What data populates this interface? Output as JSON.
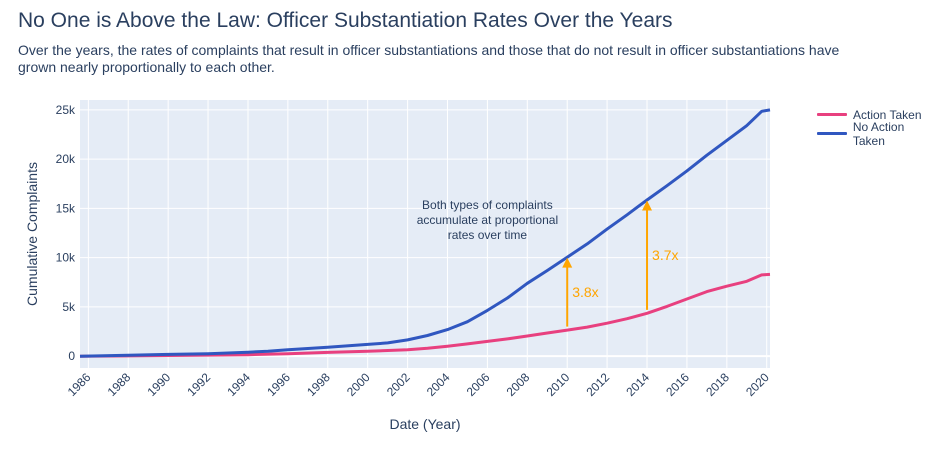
{
  "title": "No One is Above the Law: Officer Substantiation Rates Over the Years",
  "subtitle": "Over the years, the rates of complaints that result in officer substantiations and those that do not result in officer substantiations have grown nearly proportionally to each other.",
  "colors": {
    "plot_bg": "#e5ecf6",
    "grid": "#ffffff",
    "text": "#2a3f5f",
    "annotation": "#ffa500"
  },
  "chart_data": {
    "type": "line",
    "title": "No One is Above the Law: Officer Substantiation Rates Over the Years",
    "xlabel": "Date (Year)",
    "ylabel": "Cumulative Complaints",
    "xlim": [
      "1985-08-01",
      "2020-03-01"
    ],
    "ylim": [
      -1200,
      26000
    ],
    "x_ticks": [
      "1986",
      "1988",
      "1990",
      "1992",
      "1994",
      "1996",
      "1998",
      "2000",
      "2002",
      "2004",
      "2006",
      "2008",
      "2010",
      "2012",
      "2014",
      "2016",
      "2018",
      "2020"
    ],
    "y_ticks": [
      0,
      5000,
      10000,
      15000,
      20000,
      25000
    ],
    "y_tick_labels": [
      "0",
      "5k",
      "10k",
      "15k",
      "20k",
      "25k"
    ],
    "grid": true,
    "legend_position": "right",
    "series": [
      {
        "name": "Action Taken",
        "color": "#e8407f",
        "points": [
          [
            "1985-08-01",
            0
          ],
          [
            "1990-01-01",
            70
          ],
          [
            "1994-01-01",
            150
          ],
          [
            "1996-01-01",
            250
          ],
          [
            "1998-01-01",
            380
          ],
          [
            "2000-01-01",
            500
          ],
          [
            "2002-01-01",
            650
          ],
          [
            "2003-01-01",
            800
          ],
          [
            "2004-01-01",
            1000
          ],
          [
            "2005-01-01",
            1250
          ],
          [
            "2006-01-01",
            1500
          ],
          [
            "2007-01-01",
            1750
          ],
          [
            "2008-01-01",
            2050
          ],
          [
            "2009-01-01",
            2350
          ],
          [
            "2010-01-01",
            2650
          ],
          [
            "2011-01-01",
            2950
          ],
          [
            "2012-01-01",
            3350
          ],
          [
            "2013-01-01",
            3800
          ],
          [
            "2014-01-01",
            4350
          ],
          [
            "2015-01-01",
            5050
          ],
          [
            "2016-01-01",
            5800
          ],
          [
            "2017-01-01",
            6550
          ],
          [
            "2018-01-01",
            7100
          ],
          [
            "2019-01-01",
            7600
          ],
          [
            "2019-10-01",
            8250
          ],
          [
            "2020-03-01",
            8300
          ]
        ]
      },
      {
        "name": "No Action Taken",
        "color": "#3057c0",
        "points": [
          [
            "1985-08-01",
            0
          ],
          [
            "1988-01-01",
            100
          ],
          [
            "1990-01-01",
            180
          ],
          [
            "1992-01-01",
            250
          ],
          [
            "1994-01-01",
            400
          ],
          [
            "1995-01-01",
            500
          ],
          [
            "1996-01-01",
            650
          ],
          [
            "1998-01-01",
            900
          ],
          [
            "2000-01-01",
            1200
          ],
          [
            "2001-01-01",
            1350
          ],
          [
            "2002-01-01",
            1650
          ],
          [
            "2003-01-01",
            2100
          ],
          [
            "2004-01-01",
            2700
          ],
          [
            "2005-01-01",
            3500
          ],
          [
            "2006-01-01",
            4650
          ],
          [
            "2007-01-01",
            5900
          ],
          [
            "2008-01-01",
            7400
          ],
          [
            "2009-01-01",
            8700
          ],
          [
            "2010-01-01",
            10050
          ],
          [
            "2011-01-01",
            11400
          ],
          [
            "2012-01-01",
            12900
          ],
          [
            "2013-01-01",
            14350
          ],
          [
            "2014-01-01",
            15850
          ],
          [
            "2015-01-01",
            17300
          ],
          [
            "2016-01-01",
            18800
          ],
          [
            "2017-01-01",
            20400
          ],
          [
            "2018-01-01",
            21900
          ],
          [
            "2019-01-01",
            23400
          ],
          [
            "2019-10-01",
            24850
          ],
          [
            "2020-03-01",
            25000
          ]
        ]
      }
    ],
    "annotations": [
      {
        "text": "Both types of complaints accumulate at proportional rates over time",
        "lines": [
          "Both types of complaints",
          "accumulate at proportional",
          "rates over time"
        ],
        "x": "2006-01-01",
        "y": 13500
      },
      {
        "text": "3.8x",
        "x": "2010-01-01",
        "y_from": 3000,
        "y_to": 10000
      },
      {
        "text": "3.7x",
        "x": "2014-01-01",
        "y_from": 4700,
        "y_to": 15800
      }
    ]
  }
}
